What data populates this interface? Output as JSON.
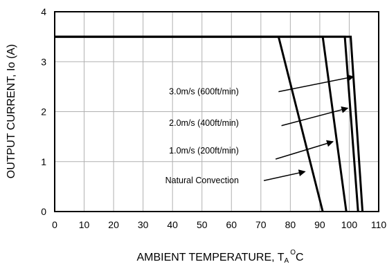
{
  "chart_data": {
    "type": "line",
    "title": "",
    "xlabel": "AMBIENT TEMPERATURE, T",
    "xlabel_sub": "A",
    "xlabel_sup": "O",
    "xlabel_unit": "C",
    "ylabel": "OUTPUT CURRENT, Io  (A)",
    "xlim": [
      0,
      110
    ],
    "ylim": [
      0,
      4
    ],
    "x_ticks": [
      0,
      10,
      20,
      30,
      40,
      50,
      60,
      70,
      80,
      90,
      100,
      110
    ],
    "y_ticks": [
      0,
      1,
      2,
      3,
      4
    ],
    "grid": true,
    "series": [
      {
        "name": "Natural Convection",
        "x": [
          0,
          76,
          91
        ],
        "y": [
          3.5,
          3.5,
          0
        ]
      },
      {
        "name": "1.0m/s (200ft/min)",
        "x": [
          0,
          91,
          99
        ],
        "y": [
          3.5,
          3.5,
          0
        ]
      },
      {
        "name": "2.0m/s (400ft/min)",
        "x": [
          0,
          98.5,
          103
        ],
        "y": [
          3.5,
          3.5,
          0
        ]
      },
      {
        "name": "3.0m/s (600ft/min)",
        "x": [
          0,
          100.5,
          104.5
        ],
        "y": [
          3.5,
          3.5,
          0
        ]
      }
    ],
    "annotations": [
      {
        "text": "3.0m/s (600ft/min)",
        "anchor": [
          62.5,
          2.4
        ],
        "arrow_from": [
          76,
          2.4
        ],
        "arrow_to": [
          101.5,
          2.7
        ]
      },
      {
        "text": "2.0m/s (400ft/min)",
        "anchor": [
          62.5,
          1.77
        ],
        "arrow_from": [
          77,
          1.72
        ],
        "arrow_to": [
          99.5,
          2.07
        ]
      },
      {
        "text": "1.0m/s (200ft/min)",
        "anchor": [
          62.5,
          1.22
        ],
        "arrow_from": [
          75,
          1.05
        ],
        "arrow_to": [
          94.5,
          1.4
        ]
      },
      {
        "text": "Natural Convection",
        "anchor": [
          62.5,
          0.62
        ],
        "arrow_from": [
          71,
          0.62
        ],
        "arrow_to": [
          85,
          0.8
        ]
      }
    ]
  }
}
